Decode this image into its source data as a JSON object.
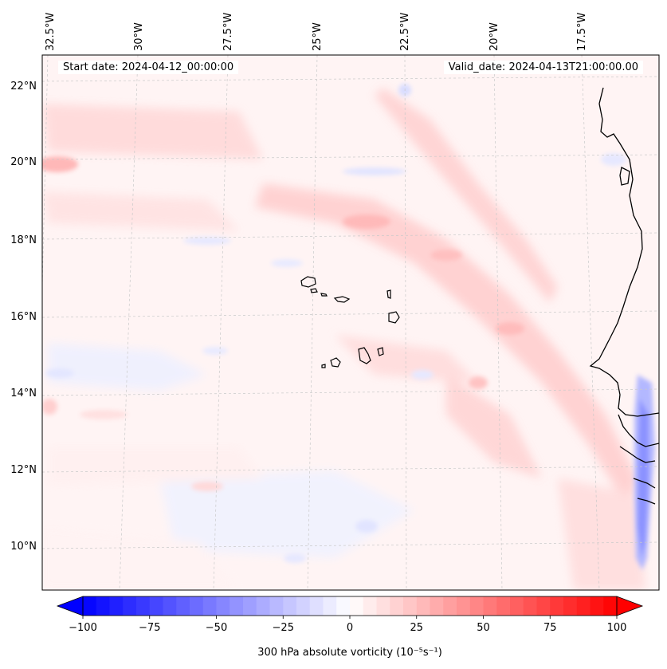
{
  "header": {
    "start_date": "Start date: 2024-04-12_00:00:00",
    "valid_date": "Valid_date: 2024-04-13T21:00:00.00"
  },
  "map": {
    "lon_labels": [
      "32.5°W",
      "30°W",
      "27.5°W",
      "25°W",
      "22.5°W",
      "20°W",
      "17.5°W"
    ],
    "lat_labels": [
      "22°N",
      "20°N",
      "18°N",
      "16°N",
      "14°N",
      "12°N",
      "10°N"
    ],
    "coastline_color": "#000000",
    "gridline_color": "#cccccc"
  },
  "colorbar": {
    "label": "300 hPa absolute vorticity (10⁻⁵s⁻¹)",
    "ticks": [
      "−100",
      "−75",
      "−50",
      "−25",
      "0",
      "25",
      "50",
      "75",
      "100"
    ],
    "range": [
      -100,
      100
    ],
    "cmap": "bwr",
    "min_color": "#0000ff",
    "mid_color": "#ffffff",
    "max_color": "#ff0000"
  }
}
